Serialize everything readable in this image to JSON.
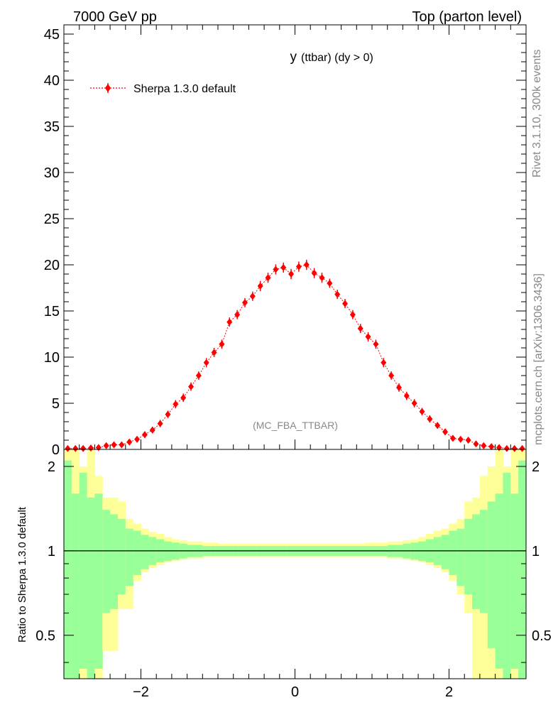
{
  "header": {
    "left_title": "7000 GeV pp",
    "right_title": "Top (parton level)"
  },
  "side_labels": {
    "rivet": "Rivet 3.1.10,  300k events",
    "mcplots": "mcplots.cern.ch [arXiv:1306.3436]"
  },
  "chart_data": [
    {
      "type": "scatter",
      "title": "y (ttbar) (dy > 0)",
      "title_main": "y",
      "title_sub": "(ttbar) (dy > 0)",
      "watermark": "(MC_FBA_TTBAR)",
      "xlabel": "",
      "ylabel": "",
      "xlim": [
        -3,
        3
      ],
      "ylim": [
        0,
        46
      ],
      "y_ticks": [
        0,
        5,
        10,
        15,
        20,
        25,
        30,
        35,
        40,
        45
      ],
      "legend_placement": "top-left",
      "colors": {
        "series": "#ff0000"
      },
      "series": [
        {
          "name": "Sherpa 1.3.0 default",
          "x": [
            -2.95,
            -2.85,
            -2.75,
            -2.65,
            -2.55,
            -2.45,
            -2.35,
            -2.25,
            -2.15,
            -2.05,
            -1.95,
            -1.85,
            -1.75,
            -1.65,
            -1.55,
            -1.45,
            -1.35,
            -1.25,
            -1.15,
            -1.05,
            -0.95,
            -0.85,
            -0.75,
            -0.65,
            -0.55,
            -0.45,
            -0.35,
            -0.25,
            -0.15,
            -0.05,
            0.05,
            0.15,
            0.25,
            0.35,
            0.45,
            0.55,
            0.65,
            0.75,
            0.85,
            0.95,
            1.05,
            1.15,
            1.25,
            1.35,
            1.45,
            1.55,
            1.65,
            1.75,
            1.85,
            1.95,
            2.05,
            2.15,
            2.25,
            2.35,
            2.45,
            2.55,
            2.65,
            2.75,
            2.85,
            2.95
          ],
          "y": [
            0.1,
            0.1,
            0.1,
            0.15,
            0.2,
            0.4,
            0.5,
            0.5,
            0.8,
            1.1,
            1.6,
            2.1,
            2.8,
            3.8,
            4.9,
            5.6,
            6.8,
            8.0,
            9.4,
            10.5,
            11.4,
            13.8,
            14.6,
            15.9,
            16.6,
            17.7,
            18.6,
            19.5,
            19.7,
            19.0,
            19.8,
            20.0,
            19.1,
            18.6,
            18.0,
            16.8,
            15.8,
            14.6,
            13.1,
            12.2,
            11.4,
            9.4,
            8.0,
            6.7,
            5.8,
            5.0,
            4.1,
            3.3,
            2.6,
            1.9,
            1.2,
            1.1,
            1.0,
            0.6,
            0.4,
            0.3,
            0.2,
            0.1,
            0.1,
            0.1
          ],
          "yerr": [
            0.1,
            0.1,
            0.1,
            0.1,
            0.15,
            0.2,
            0.25,
            0.25,
            0.3,
            0.3,
            0.35,
            0.35,
            0.4,
            0.4,
            0.45,
            0.45,
            0.45,
            0.45,
            0.5,
            0.5,
            0.5,
            0.5,
            0.5,
            0.5,
            0.5,
            0.55,
            0.55,
            0.55,
            0.55,
            0.55,
            0.55,
            0.55,
            0.55,
            0.55,
            0.5,
            0.5,
            0.5,
            0.5,
            0.5,
            0.5,
            0.5,
            0.5,
            0.45,
            0.45,
            0.45,
            0.45,
            0.4,
            0.4,
            0.35,
            0.35,
            0.3,
            0.3,
            0.3,
            0.25,
            0.2,
            0.2,
            0.15,
            0.1,
            0.1,
            0.1
          ]
        }
      ]
    },
    {
      "type": "area",
      "title": "",
      "ylabel": "Ratio to Sherpa 1.3.0 default",
      "xlim": [
        -3,
        3
      ],
      "ylim": [
        0.35,
        2.3
      ],
      "y_scale": "log",
      "y_ticks": [
        0.5,
        1,
        2
      ],
      "x_ticks": [
        -2,
        0,
        2
      ],
      "reference_line": 1,
      "colors": {
        "outer_band": "#ffff99",
        "inner_band": "#99ff99",
        "reference": "#000000"
      },
      "bin_centers": [
        -2.95,
        -2.85,
        -2.75,
        -2.65,
        -2.55,
        -2.45,
        -2.35,
        -2.25,
        -2.15,
        -2.05,
        -1.95,
        -1.85,
        -1.75,
        -1.65,
        -1.55,
        -1.45,
        -1.35,
        -1.25,
        -1.15,
        -1.05,
        -0.95,
        -0.85,
        -0.75,
        -0.65,
        -0.55,
        -0.45,
        -0.35,
        -0.25,
        -0.15,
        -0.05,
        0.05,
        0.15,
        0.25,
        0.35,
        0.45,
        0.55,
        0.65,
        0.75,
        0.85,
        0.95,
        1.05,
        1.15,
        1.25,
        1.35,
        1.45,
        1.55,
        1.65,
        1.75,
        1.85,
        1.95,
        2.05,
        2.15,
        2.25,
        2.35,
        2.45,
        2.55,
        2.65,
        2.75,
        2.85,
        2.95
      ],
      "outer_upper": [
        2.5,
        2.5,
        2.0,
        2.5,
        1.85,
        1.55,
        1.55,
        1.5,
        1.3,
        1.25,
        1.2,
        1.17,
        1.15,
        1.12,
        1.1,
        1.09,
        1.08,
        1.08,
        1.07,
        1.07,
        1.06,
        1.06,
        1.06,
        1.06,
        1.06,
        1.06,
        1.06,
        1.06,
        1.06,
        1.06,
        1.06,
        1.06,
        1.06,
        1.06,
        1.06,
        1.06,
        1.06,
        1.06,
        1.06,
        1.07,
        1.07,
        1.07,
        1.08,
        1.08,
        1.09,
        1.1,
        1.12,
        1.15,
        1.18,
        1.2,
        1.25,
        1.3,
        1.5,
        1.55,
        1.85,
        2.0,
        2.5,
        2.0,
        2.5,
        2.5
      ],
      "outer_lower": [
        0.3,
        0.3,
        0.3,
        0.3,
        0.3,
        0.44,
        0.44,
        0.62,
        0.62,
        0.78,
        0.84,
        0.87,
        0.89,
        0.91,
        0.92,
        0.93,
        0.94,
        0.94,
        0.95,
        0.95,
        0.95,
        0.95,
        0.95,
        0.95,
        0.95,
        0.95,
        0.95,
        0.95,
        0.95,
        0.95,
        0.95,
        0.95,
        0.95,
        0.95,
        0.95,
        0.95,
        0.95,
        0.95,
        0.95,
        0.95,
        0.95,
        0.95,
        0.94,
        0.94,
        0.93,
        0.92,
        0.91,
        0.89,
        0.87,
        0.84,
        0.78,
        0.7,
        0.6,
        0.3,
        0.3,
        0.3,
        0.3,
        0.3,
        0.3,
        0.3
      ],
      "inner_upper": [
        2.1,
        1.6,
        1.9,
        1.55,
        1.6,
        1.4,
        1.35,
        1.3,
        1.2,
        1.18,
        1.14,
        1.12,
        1.1,
        1.08,
        1.07,
        1.06,
        1.05,
        1.05,
        1.04,
        1.04,
        1.04,
        1.04,
        1.04,
        1.04,
        1.04,
        1.04,
        1.04,
        1.04,
        1.04,
        1.04,
        1.04,
        1.04,
        1.04,
        1.04,
        1.04,
        1.04,
        1.04,
        1.04,
        1.04,
        1.04,
        1.04,
        1.04,
        1.05,
        1.05,
        1.06,
        1.07,
        1.08,
        1.1,
        1.12,
        1.14,
        1.18,
        1.2,
        1.3,
        1.35,
        1.4,
        1.5,
        1.6,
        1.9,
        1.6,
        2.1
      ],
      "inner_lower": [
        0.3,
        0.3,
        0.38,
        0.3,
        0.38,
        0.6,
        0.62,
        0.7,
        0.75,
        0.82,
        0.86,
        0.89,
        0.91,
        0.92,
        0.93,
        0.94,
        0.95,
        0.95,
        0.96,
        0.96,
        0.96,
        0.96,
        0.96,
        0.96,
        0.96,
        0.96,
        0.96,
        0.96,
        0.96,
        0.96,
        0.96,
        0.96,
        0.96,
        0.96,
        0.96,
        0.96,
        0.96,
        0.96,
        0.96,
        0.96,
        0.96,
        0.96,
        0.95,
        0.95,
        0.94,
        0.93,
        0.92,
        0.91,
        0.89,
        0.86,
        0.82,
        0.75,
        0.7,
        0.62,
        0.6,
        0.45,
        0.38,
        0.3,
        0.38,
        0.3
      ]
    }
  ]
}
